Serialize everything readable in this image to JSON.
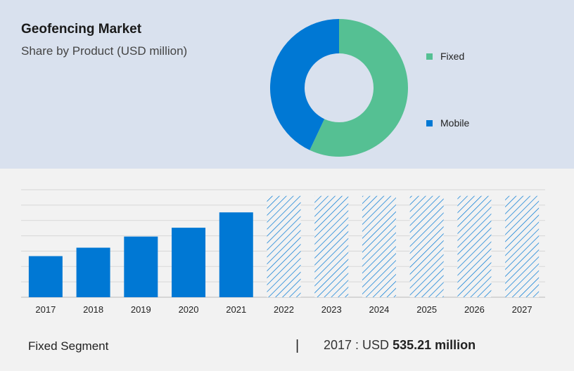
{
  "header": {
    "title": "Geofencing Market",
    "subtitle": "Share by Product (USD million)"
  },
  "chart_data": [
    {
      "type": "pie",
      "donut": true,
      "segments": [
        {
          "name": "Fixed",
          "value": 57,
          "color": "#55c093"
        },
        {
          "name": "Mobile",
          "value": 43,
          "color": "#0078d4"
        }
      ]
    },
    {
      "type": "bar",
      "categories": [
        "2017",
        "2018",
        "2019",
        "2020",
        "2021",
        "2022",
        "2023",
        "2024",
        "2025",
        "2026",
        "2027"
      ],
      "values": [
        535.21,
        645,
        790,
        905,
        1105,
        1320,
        1320,
        1320,
        1320,
        1320,
        1320
      ],
      "forecast_from": "2022",
      "ylim": [
        0,
        1400
      ],
      "grid": true,
      "colors": {
        "actual": "#0078d4",
        "forecast": "#0078d4"
      }
    }
  ],
  "footer": {
    "segment": "Fixed Segment",
    "separator": "|",
    "year_label": "2017 : USD ",
    "value": "535.21 million"
  }
}
